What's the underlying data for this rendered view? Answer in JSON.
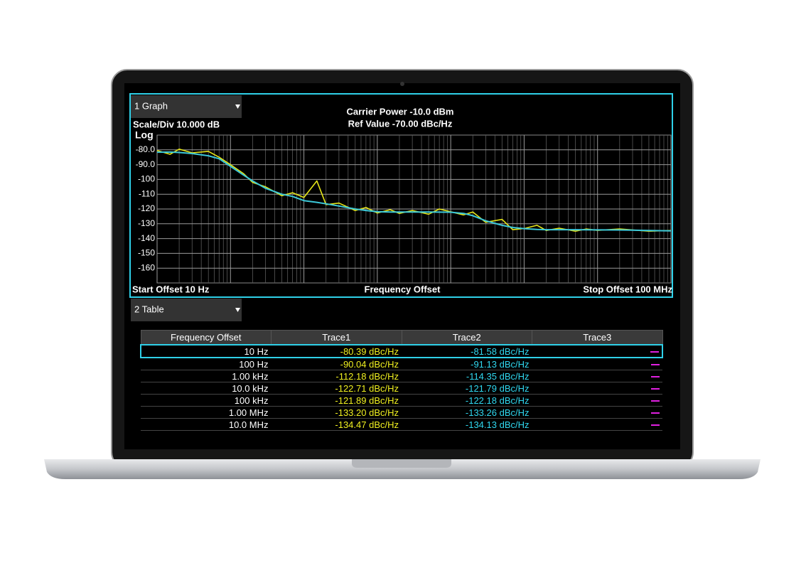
{
  "graph_panel": {
    "selector": "1 Graph",
    "scale": "Scale/Div 10.000 dB",
    "carrier_power": "Carrier Power -10.0 dBm",
    "ref_value": "Ref Value -70.00 dBc/Hz",
    "start_offset": "Start Offset 10 Hz",
    "stop_offset": "Stop Offset 100 MHz"
  },
  "chart_data": {
    "type": "line",
    "scale_label": "Log",
    "xlabel": "Frequency Offset",
    "x": [
      10,
      15,
      20,
      30,
      50,
      70,
      100,
      150,
      200,
      300,
      500,
      700,
      1000,
      1500,
      2000,
      3000,
      5000,
      7000,
      10000,
      15000,
      20000,
      30000,
      50000,
      70000,
      100000,
      150000,
      200000,
      300000,
      500000,
      700000,
      1000000,
      1500000,
      2000000,
      3000000,
      5000000,
      7000000,
      10000000,
      20000000,
      50000000,
      100000000
    ],
    "series": [
      {
        "color": "#e6e619",
        "values": [
          -80.39,
          -83,
          -79.5,
          -82,
          -81,
          -85,
          -90.04,
          -96,
          -102,
          -105,
          -111,
          -109,
          -112.18,
          -101,
          -117,
          -116,
          -121,
          -119,
          -122.71,
          -120.5,
          -123,
          -121,
          -123.5,
          -120,
          -121.89,
          -124,
          -122,
          -129,
          -127,
          -134,
          -133.2,
          -131,
          -134.5,
          -133,
          -135,
          -133.5,
          -134.47,
          -133.5,
          -135,
          -134.5
        ]
      },
      {
        "color": "#3cc8d8",
        "values": [
          -81.58,
          -81.5,
          -81.8,
          -82.5,
          -84,
          -86,
          -91.13,
          -97,
          -101,
          -106,
          -110,
          -111.5,
          -114.35,
          -115.5,
          -116.5,
          -118,
          -120,
          -121,
          -121.79,
          -122,
          -122,
          -122,
          -122,
          -122.1,
          -122.18,
          -123,
          -124.5,
          -128,
          -131,
          -132.5,
          -133.26,
          -133.8,
          -134,
          -134,
          -134,
          -134.1,
          -134.13,
          -134.2,
          -134.5,
          -134.8
        ]
      }
    ],
    "xlim": [
      10,
      100000000
    ],
    "log_x": true,
    "xticks": [
      10,
      100,
      1000,
      10000,
      100000,
      1000000,
      10000000,
      100000000
    ],
    "ylim": [
      -170,
      -70
    ],
    "yticks": [
      {
        "value": -80,
        "label": "-80.0"
      },
      {
        "value": -90,
        "label": "-90.0"
      },
      -100,
      -110,
      -120,
      -130,
      -140,
      -150,
      -160
    ],
    "grid": true
  },
  "table_panel": {
    "selector": "2 Table"
  },
  "table": {
    "header": [
      "Frequency Offset",
      "Trace1",
      "Trace2",
      "Trace3"
    ],
    "rows": [
      [
        "10 Hz",
        "-80.39 dBc/Hz",
        "-81.58 dBc/Hz"
      ],
      [
        "100 Hz",
        "-90.04 dBc/Hz",
        "-91.13 dBc/Hz"
      ],
      [
        "1.00 kHz",
        "-112.18 dBc/Hz",
        "-114.35 dBc/Hz"
      ],
      [
        "10.0 kHz",
        "-122.71 dBc/Hz",
        "-121.79 dBc/Hz"
      ],
      [
        "100 kHz",
        "-121.89 dBc/Hz",
        "-122.18 dBc/Hz"
      ],
      [
        "1.00 MHz",
        "-133.20 dBc/Hz",
        "-133.26 dBc/Hz"
      ],
      [
        "10.0 MHz",
        "-134.47 dBc/Hz",
        "-134.13 dBc/Hz"
      ]
    ]
  }
}
